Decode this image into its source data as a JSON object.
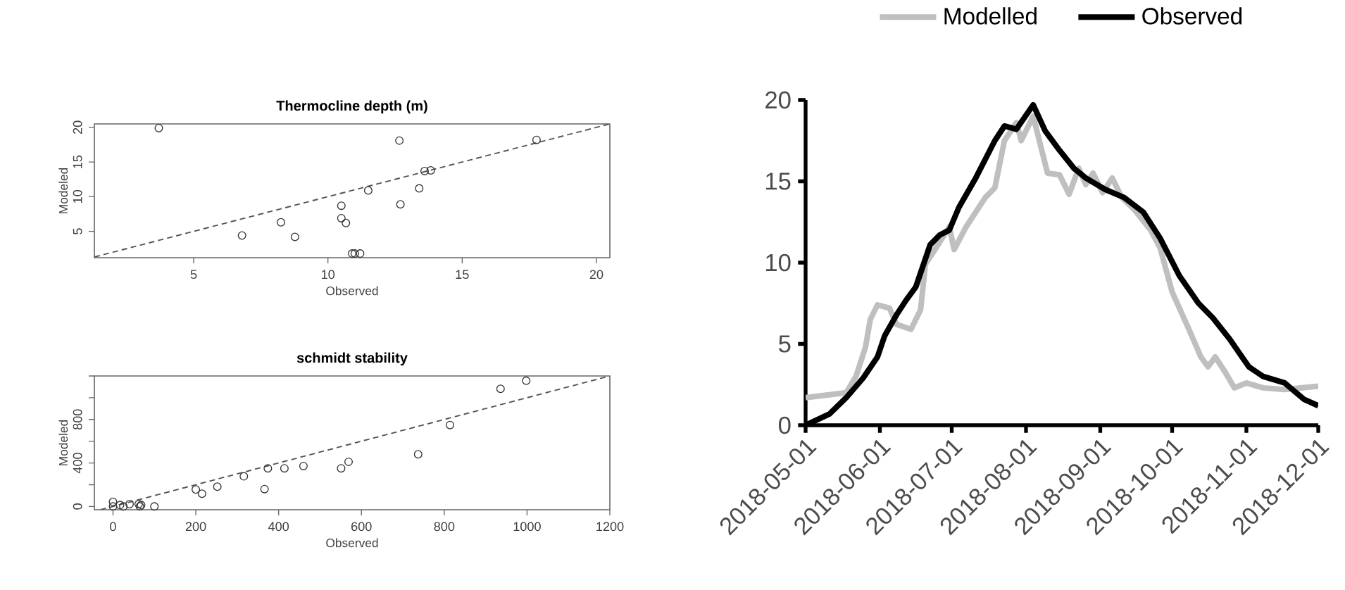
{
  "chart_data": [
    {
      "type": "scatter",
      "title": "Thermocline depth (m)",
      "xlabel": "Observed",
      "ylabel": "Modeled",
      "xlim": [
        1.3,
        20.5
      ],
      "ylim": [
        1.2,
        20.5
      ],
      "xticks": [
        5,
        10,
        15,
        20
      ],
      "yticks": [
        5,
        10,
        15,
        20
      ],
      "marker": "circle",
      "series": [
        {
          "type": "scatter",
          "color": "#333333",
          "x": [
            3.7,
            12.66,
            17.77,
            13.6,
            13.83,
            11.5,
            13.4,
            12.7,
            10.5,
            10.5,
            10.67,
            8.25,
            6.8,
            8.77,
            10.9,
            11.0,
            11.2
          ],
          "values": [
            19.9,
            18.1,
            18.2,
            13.7,
            13.8,
            10.9,
            11.2,
            8.9,
            8.7,
            6.9,
            6.2,
            6.3,
            4.4,
            4.2,
            1.8,
            1.8,
            1.8
          ]
        },
        {
          "type": "line",
          "color": "#555555",
          "line_style": "dashed",
          "marker": "none",
          "x": [
            1.3,
            20.5
          ],
          "values": [
            1.3,
            20.5
          ]
        }
      ]
    },
    {
      "type": "scatter",
      "title": "schmidt stability",
      "xlabel": "Observed",
      "ylabel": "Modeled",
      "xlim": [
        -45,
        1200
      ],
      "ylim": [
        -30,
        1200
      ],
      "xticks": [
        0,
        200,
        400,
        600,
        800,
        1000,
        1200
      ],
      "yticks": [
        0,
        {
          "value": 200,
          "label": null
        },
        400,
        {
          "value": 600,
          "label": null
        },
        800,
        {
          "value": 1000,
          "label": null
        },
        {
          "value": 1200,
          "label": null
        }
      ],
      "marker": "circle",
      "series": [
        {
          "type": "scatter",
          "color": "#333333",
          "x": [
            0,
            0,
            17,
            25,
            40,
            62,
            65,
            68,
            100,
            200,
            215,
            252,
            316,
            366,
            374,
            414,
            460,
            551,
            569,
            737,
            814,
            936,
            998
          ],
          "values": [
            43,
            0,
            13,
            0,
            22,
            22,
            0,
            13,
            0,
            156,
            117,
            182,
            277,
            160,
            351,
            351,
            372,
            351,
            411,
            480,
            749,
            1082,
            1156
          ]
        },
        {
          "type": "line",
          "color": "#555555",
          "line_style": "dashed",
          "marker": "none",
          "x": [
            -30,
            1200
          ],
          "values": [
            -30,
            1200
          ]
        }
      ]
    },
    {
      "type": "line",
      "xlim": [
        "2018-05-01",
        "2018-12-01"
      ],
      "ylim": [
        0,
        20
      ],
      "xticks": [
        "2018-05-01",
        "2018-06-01",
        "2018-07-01",
        "2018-08-01",
        "2018-09-01",
        "2018-10-01",
        "2018-11-01",
        "2018-12-01"
      ],
      "yticks": [
        0,
        5,
        10,
        15,
        20
      ],
      "legend": "top",
      "series": [
        {
          "name": "Modelled",
          "color": "#bfbfbf",
          "x": [
            "2018-05-01",
            "2018-05-18",
            "2018-05-22",
            "2018-05-26",
            "2018-05-28",
            "2018-05-31",
            "2018-06-05",
            "2018-06-08",
            "2018-06-14",
            "2018-06-18",
            "2018-06-20",
            "2018-06-24",
            "2018-06-30",
            "2018-07-02",
            "2018-07-07",
            "2018-07-15",
            "2018-07-19",
            "2018-07-23",
            "2018-07-28",
            "2018-07-30",
            "2018-08-04",
            "2018-08-10",
            "2018-08-15",
            "2018-08-19",
            "2018-08-23",
            "2018-08-26",
            "2018-08-29",
            "2018-09-02",
            "2018-09-06",
            "2018-09-10",
            "2018-09-15",
            "2018-09-22",
            "2018-09-26",
            "2018-10-01",
            "2018-10-08",
            "2018-10-13",
            "2018-10-16",
            "2018-10-19",
            "2018-10-23",
            "2018-10-27",
            "2018-11-01",
            "2018-11-08",
            "2018-11-17",
            "2018-12-01"
          ],
          "values": [
            1.7,
            2.0,
            3.0,
            4.8,
            6.5,
            7.4,
            7.2,
            6.2,
            5.9,
            7.1,
            9.9,
            10.8,
            12.2,
            10.8,
            12.2,
            14.0,
            14.6,
            17.5,
            18.6,
            17.5,
            19.0,
            15.5,
            15.4,
            14.2,
            15.8,
            14.8,
            15.5,
            14.3,
            15.2,
            14.0,
            13.3,
            12.0,
            10.9,
            8.2,
            5.9,
            4.2,
            3.6,
            4.2,
            3.3,
            2.3,
            2.6,
            2.3,
            2.2,
            2.4
          ]
        },
        {
          "name": "Observed",
          "color": "#000000",
          "x": [
            "2018-05-01",
            "2018-05-11",
            "2018-05-18",
            "2018-05-25",
            "2018-05-31",
            "2018-06-03",
            "2018-06-08",
            "2018-06-12",
            "2018-06-16",
            "2018-06-22",
            "2018-06-26",
            "2018-06-30",
            "2018-07-04",
            "2018-07-11",
            "2018-07-19",
            "2018-07-23",
            "2018-07-28",
            "2018-08-04",
            "2018-08-09",
            "2018-08-15",
            "2018-08-21",
            "2018-08-26",
            "2018-09-03",
            "2018-09-11",
            "2018-09-19",
            "2018-09-26",
            "2018-10-04",
            "2018-10-12",
            "2018-10-18",
            "2018-10-25",
            "2018-11-02",
            "2018-11-08",
            "2018-11-17",
            "2018-11-25",
            "2018-12-01"
          ],
          "values": [
            0,
            0.7,
            1.7,
            2.9,
            4.2,
            5.5,
            6.8,
            7.7,
            8.5,
            11.1,
            11.7,
            12.0,
            13.4,
            15.2,
            17.5,
            18.4,
            18.2,
            19.7,
            18.1,
            16.9,
            15.8,
            15.2,
            14.5,
            14.0,
            13.1,
            11.5,
            9.2,
            7.5,
            6.6,
            5.3,
            3.6,
            3.0,
            2.6,
            1.6,
            1.2
          ]
        }
      ]
    }
  ]
}
